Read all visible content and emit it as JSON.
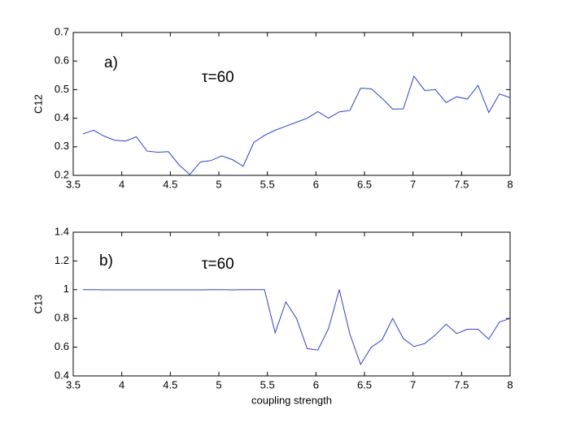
{
  "chart_data": [
    {
      "type": "line",
      "ylabel": "C12",
      "annotations": [
        "a)",
        "τ=60"
      ],
      "x": [
        3.6,
        3.71,
        3.82,
        3.93,
        4.04,
        4.15,
        4.26,
        4.37,
        4.48,
        4.59,
        4.7,
        4.81,
        4.92,
        5.03,
        5.14,
        5.25,
        5.36,
        5.47,
        5.58,
        5.69,
        5.8,
        5.91,
        6.02,
        6.13,
        6.24,
        6.35,
        6.46,
        6.57,
        6.68,
        6.79,
        6.9,
        7.01,
        7.12,
        7.23,
        7.34,
        7.45,
        7.56,
        7.67,
        7.78,
        7.89,
        8.0
      ],
      "series": [
        {
          "color": "#2b3fe0",
          "values": [
            0.345,
            0.358,
            0.337,
            0.323,
            0.32,
            0.335,
            0.285,
            0.281,
            0.283,
            0.237,
            0.203,
            0.247,
            0.252,
            0.268,
            0.255,
            0.232,
            0.315,
            0.34,
            0.358,
            0.372,
            0.386,
            0.4,
            0.423,
            0.4,
            0.422,
            0.427,
            0.505,
            0.503,
            0.47,
            0.432,
            0.433,
            0.547,
            0.497,
            0.5,
            0.455,
            0.475,
            0.467,
            0.515,
            0.42,
            0.485,
            0.472
          ]
        }
      ],
      "xlim": [
        3.5,
        8
      ],
      "xticks": [
        3.5,
        4,
        4.5,
        5,
        5.5,
        6,
        6.5,
        7,
        7.5,
        8
      ],
      "ylim": [
        0.2,
        0.7
      ],
      "yticks": [
        0.2,
        0.3,
        0.4,
        0.5,
        0.6,
        0.7
      ]
    },
    {
      "type": "line",
      "xlabel": "coupling strength",
      "ylabel": "C13",
      "annotations": [
        "b)",
        "τ=60"
      ],
      "x": [
        3.6,
        3.71,
        3.82,
        3.93,
        4.04,
        4.15,
        4.26,
        4.37,
        4.48,
        4.59,
        4.7,
        4.81,
        4.92,
        5.03,
        5.14,
        5.25,
        5.36,
        5.47,
        5.58,
        5.69,
        5.8,
        5.91,
        6.02,
        6.13,
        6.24,
        6.35,
        6.46,
        6.57,
        6.68,
        6.79,
        6.9,
        7.01,
        7.12,
        7.23,
        7.34,
        7.45,
        7.56,
        7.67,
        7.78,
        7.89,
        8.0
      ],
      "series": [
        {
          "color": "#2b3fe0",
          "values": [
            1.0,
            1.0,
            0.999,
            0.999,
            0.999,
            0.999,
            0.999,
            0.999,
            0.999,
            0.999,
            0.999,
            0.999,
            1.0,
            1.0,
            0.999,
            1.0,
            1.0,
            1.0,
            0.7,
            0.915,
            0.8,
            0.59,
            0.58,
            0.73,
            1.0,
            0.69,
            0.48,
            0.6,
            0.65,
            0.8,
            0.66,
            0.605,
            0.625,
            0.685,
            0.76,
            0.695,
            0.725,
            0.725,
            0.655,
            0.775,
            0.8
          ]
        }
      ],
      "xlim": [
        3.5,
        8
      ],
      "xticks": [
        3.5,
        4,
        4.5,
        5,
        5.5,
        6,
        6.5,
        7,
        7.5,
        8
      ],
      "ylim": [
        0.4,
        1.4
      ],
      "yticks": [
        0.4,
        0.6,
        0.8,
        1,
        1.2,
        1.4
      ]
    }
  ]
}
